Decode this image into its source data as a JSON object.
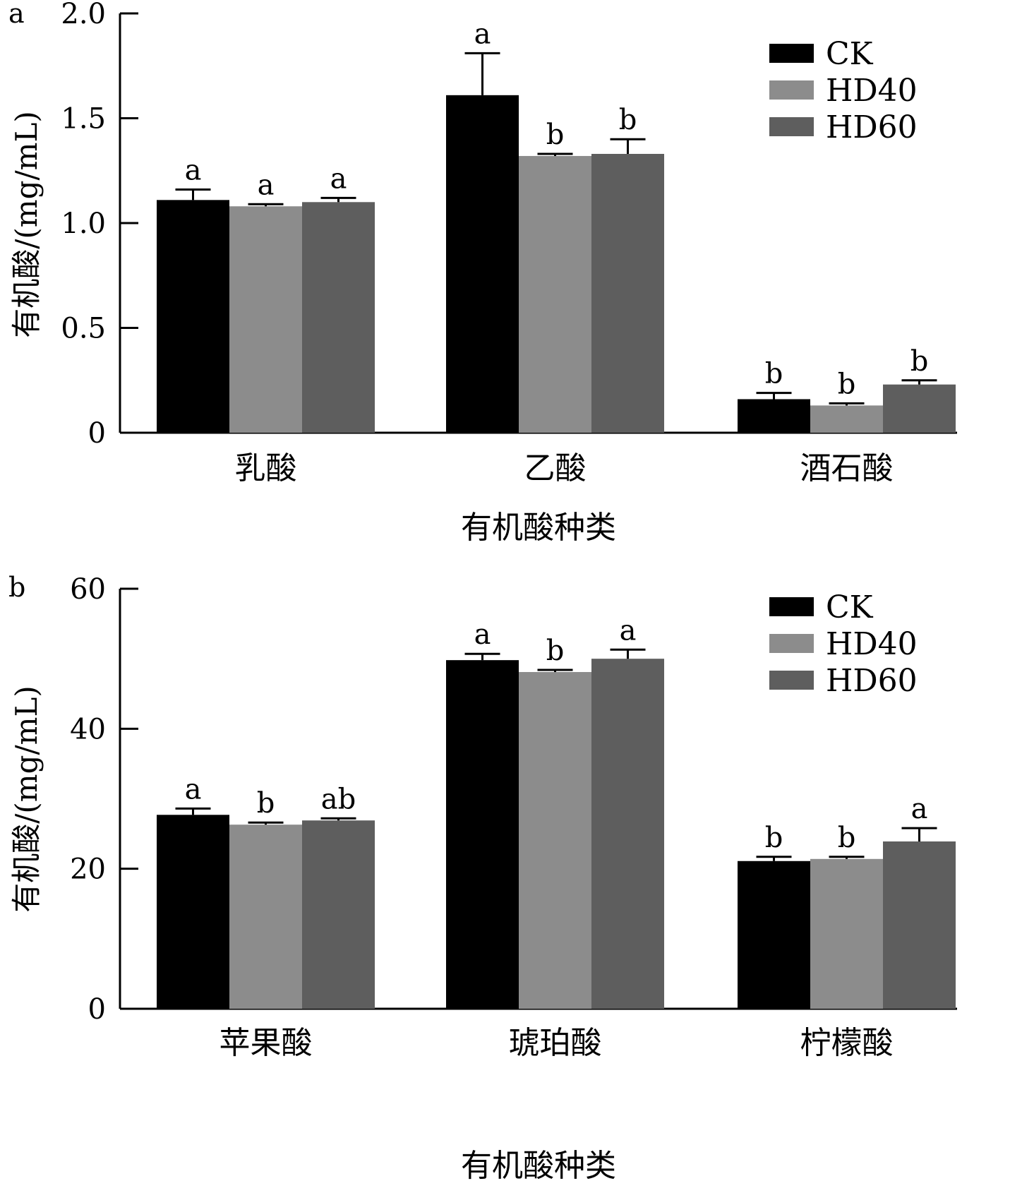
{
  "chart_data": [
    {
      "type": "bar",
      "panel_label": "a",
      "xlabel": "有机酸种类",
      "ylabel": "有机酸/(mg/mL)",
      "categories": [
        "乳酸",
        "乙酸",
        "酒石酸"
      ],
      "ylim": [
        0,
        2.0
      ],
      "yticks": [
        0,
        0.5,
        1.0,
        1.5,
        2.0
      ],
      "ytick_labels": [
        "0",
        "0.5",
        "1.0",
        "1.5",
        "2.0"
      ],
      "legend_position": "top-right",
      "grid": false,
      "series": [
        {
          "name": "CK",
          "color": "#000000",
          "values": [
            1.11,
            1.61,
            0.16
          ],
          "errors": [
            0.05,
            0.2,
            0.03
          ],
          "letters": [
            "a",
            "a",
            "b"
          ]
        },
        {
          "name": "HD40",
          "color": "#8c8c8c",
          "values": [
            1.08,
            1.32,
            0.13
          ],
          "errors": [
            0.01,
            0.01,
            0.01
          ],
          "letters": [
            "a",
            "b",
            "b"
          ]
        },
        {
          "name": "HD60",
          "color": "#5e5e5e",
          "values": [
            1.1,
            1.33,
            0.23
          ],
          "errors": [
            0.02,
            0.07,
            0.02
          ],
          "letters": [
            "a",
            "b",
            "b"
          ]
        }
      ]
    },
    {
      "type": "bar",
      "panel_label": "b",
      "xlabel": "有机酸种类",
      "ylabel": "有机酸/(mg/mL)",
      "categories": [
        "苹果酸",
        "琥珀酸",
        "柠檬酸"
      ],
      "ylim": [
        0,
        60
      ],
      "yticks": [
        0,
        20,
        40,
        60
      ],
      "ytick_labels": [
        "0",
        "20",
        "40",
        "60"
      ],
      "legend_position": "top-right",
      "grid": false,
      "series": [
        {
          "name": "CK",
          "color": "#000000",
          "values": [
            27.7,
            49.8,
            21.1
          ],
          "errors": [
            0.9,
            0.9,
            0.6
          ],
          "letters": [
            "a",
            "a",
            "b"
          ]
        },
        {
          "name": "HD40",
          "color": "#8c8c8c",
          "values": [
            26.3,
            48.1,
            21.4
          ],
          "errors": [
            0.3,
            0.3,
            0.3
          ],
          "letters": [
            "b",
            "b",
            "b"
          ]
        },
        {
          "name": "HD60",
          "color": "#5e5e5e",
          "values": [
            26.9,
            50.0,
            23.9
          ],
          "errors": [
            0.3,
            1.3,
            1.9
          ],
          "letters": [
            "ab",
            "a",
            "a"
          ]
        }
      ]
    }
  ]
}
